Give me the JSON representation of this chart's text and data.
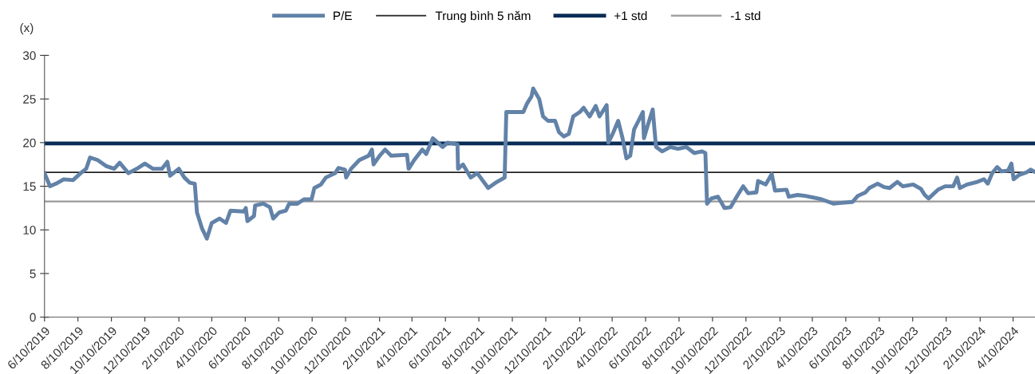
{
  "chart_data": {
    "type": "line",
    "ylabel": "(x)",
    "legend": "top",
    "grid": false,
    "marker": "none",
    "line_style": "solid",
    "xlim": [
      "2019-06-10",
      "2024-05-20"
    ],
    "ylim": [
      0,
      30
    ],
    "yticks": [
      0,
      5,
      10,
      15,
      20,
      25,
      30
    ],
    "xticks": [
      {
        "value": "2019-06-10",
        "label": "6/10/2019"
      },
      {
        "value": "2019-08-10",
        "label": "8/10/2019"
      },
      {
        "value": "2019-10-10",
        "label": "10/10/2019"
      },
      {
        "value": "2019-12-10",
        "label": "12/10/2019"
      },
      {
        "value": "2020-02-10",
        "label": "2/10/2020"
      },
      {
        "value": "2020-04-10",
        "label": "4/10/2020"
      },
      {
        "value": "2020-06-10",
        "label": "6/10/2020"
      },
      {
        "value": "2020-08-10",
        "label": "8/10/2020"
      },
      {
        "value": "2020-10-10",
        "label": "10/10/2020"
      },
      {
        "value": "2020-12-10",
        "label": "12/10/2020"
      },
      {
        "value": "2021-02-10",
        "label": "2/10/2021"
      },
      {
        "value": "2021-04-10",
        "label": "4/10/2021"
      },
      {
        "value": "2021-06-10",
        "label": "6/10/2021"
      },
      {
        "value": "2021-08-10",
        "label": "8/10/2021"
      },
      {
        "value": "2021-10-10",
        "label": "10/10/2021"
      },
      {
        "value": "2021-12-10",
        "label": "12/10/2021"
      },
      {
        "value": "2022-02-10",
        "label": "2/10/2022"
      },
      {
        "value": "2022-04-10",
        "label": "4/10/2022"
      },
      {
        "value": "2022-06-10",
        "label": "6/10/2022"
      },
      {
        "value": "2022-08-10",
        "label": "8/10/2022"
      },
      {
        "value": "2022-10-10",
        "label": "10/10/2022"
      },
      {
        "value": "2022-12-10",
        "label": "12/10/2022"
      },
      {
        "value": "2023-02-10",
        "label": "2/10/2023"
      },
      {
        "value": "2023-04-10",
        "label": "4/10/2023"
      },
      {
        "value": "2023-06-10",
        "label": "6/10/2023"
      },
      {
        "value": "2023-08-10",
        "label": "8/10/2023"
      },
      {
        "value": "2023-10-10",
        "label": "10/10/2023"
      },
      {
        "value": "2023-12-10",
        "label": "12/10/2023"
      },
      {
        "value": "2024-02-10",
        "label": "2/10/2024"
      },
      {
        "value": "2024-04-10",
        "label": "4/10/2024"
      }
    ],
    "series": [
      {
        "name": "P/E",
        "color": "#6282a8",
        "x": [
          "2019-06-10",
          "2019-06-20",
          "2019-07-01",
          "2019-07-15",
          "2019-08-01",
          "2019-08-15",
          "2019-08-25",
          "2019-09-01",
          "2019-09-15",
          "2019-10-01",
          "2019-10-15",
          "2019-10-25",
          "2019-11-10",
          "2019-11-25",
          "2019-12-10",
          "2019-12-25",
          "2020-01-10",
          "2020-01-20",
          "2020-01-25",
          "2020-02-10",
          "2020-02-20",
          "2020-03-01",
          "2020-03-10",
          "2020-03-14",
          "2020-03-23",
          "2020-04-01",
          "2020-04-10",
          "2020-04-24",
          "2020-05-06",
          "2020-05-14",
          "2020-06-07",
          "2020-06-11",
          "2020-06-14",
          "2020-06-26",
          "2020-06-28",
          "2020-07-13",
          "2020-07-25",
          "2020-07-31",
          "2020-08-11",
          "2020-08-23",
          "2020-08-29",
          "2020-09-13",
          "2020-09-25",
          "2020-10-09",
          "2020-10-14",
          "2020-10-26",
          "2020-11-04",
          "2020-11-21",
          "2020-11-27",
          "2020-12-09",
          "2020-12-11",
          "2020-12-20",
          "2021-01-04",
          "2021-01-21",
          "2021-01-27",
          "2021-01-30",
          "2021-02-10",
          "2021-02-20",
          "2021-03-03",
          "2021-04-01",
          "2021-04-04",
          "2021-04-14",
          "2021-04-29",
          "2021-05-06",
          "2021-05-18",
          "2021-06-05",
          "2021-06-14",
          "2021-07-02",
          "2021-07-03",
          "2021-07-12",
          "2021-07-26",
          "2021-08-07",
          "2021-08-27",
          "2021-09-12",
          "2021-09-26",
          "2021-09-29",
          "2021-10-16",
          "2021-10-30",
          "2021-11-06",
          "2021-11-14",
          "2021-11-17",
          "2021-11-28",
          "2021-12-05",
          "2021-12-14",
          "2021-12-27",
          "2022-01-03",
          "2022-01-12",
          "2022-01-21",
          "2022-01-29",
          "2022-02-10",
          "2022-02-17",
          "2022-02-28",
          "2022-03-11",
          "2022-03-18",
          "2022-03-31",
          "2022-04-03",
          "2022-04-11",
          "2022-04-21",
          "2022-04-29",
          "2022-05-06",
          "2022-05-13",
          "2022-05-20",
          "2022-05-28",
          "2022-06-05",
          "2022-06-07",
          "2022-06-14",
          "2022-06-23",
          "2022-06-29",
          "2022-07-10",
          "2022-07-25",
          "2022-08-08",
          "2022-08-23",
          "2022-09-07",
          "2022-09-21",
          "2022-09-27",
          "2022-09-30",
          "2022-10-08",
          "2022-10-20",
          "2022-11-01",
          "2022-11-12",
          "2022-11-25",
          "2022-12-05",
          "2022-12-14",
          "2022-12-29",
          "2023-01-01",
          "2023-01-15",
          "2023-01-26",
          "2023-02-01",
          "2023-02-22",
          "2023-02-26",
          "2023-03-14",
          "2023-03-28",
          "2023-04-27",
          "2023-05-19",
          "2023-06-02",
          "2023-06-22",
          "2023-07-02",
          "2023-07-16",
          "2023-07-23",
          "2023-08-07",
          "2023-08-19",
          "2023-08-29",
          "2023-09-12",
          "2023-09-22",
          "2023-10-11",
          "2023-10-25",
          "2023-11-01",
          "2023-11-08",
          "2023-11-25",
          "2023-12-08",
          "2023-12-23",
          "2023-12-30",
          "2024-01-04",
          "2024-01-17",
          "2024-02-05",
          "2024-02-17",
          "2024-02-24",
          "2024-03-03",
          "2024-03-12",
          "2024-03-20",
          "2024-04-01",
          "2024-04-07",
          "2024-04-11",
          "2024-04-21",
          "2024-05-05",
          "2024-05-12",
          "2024-05-18"
        ],
        "values": [
          16.5,
          15.0,
          15.3,
          15.8,
          15.7,
          16.5,
          17.0,
          18.3,
          18.0,
          17.3,
          17.0,
          17.7,
          16.5,
          17.0,
          17.6,
          17.0,
          17.0,
          17.8,
          16.2,
          17.0,
          16.0,
          15.4,
          15.3,
          12.0,
          10.2,
          9.0,
          10.8,
          11.3,
          10.8,
          12.2,
          12.1,
          12.5,
          11.0,
          11.6,
          12.8,
          13.0,
          12.6,
          11.3,
          12.0,
          12.2,
          13.0,
          13.0,
          13.5,
          13.5,
          14.8,
          15.2,
          16.0,
          16.5,
          17.1,
          16.9,
          16.0,
          17.0,
          18.0,
          18.5,
          19.2,
          17.5,
          18.5,
          19.2,
          18.5,
          18.6,
          17.0,
          18.0,
          19.2,
          18.7,
          20.5,
          19.5,
          20.0,
          19.8,
          17.0,
          17.5,
          16.0,
          16.5,
          14.8,
          15.5,
          16.0,
          23.5,
          23.5,
          23.5,
          24.5,
          25.3,
          26.2,
          25.0,
          23.0,
          22.5,
          22.5,
          21.2,
          20.7,
          21.0,
          23.0,
          23.5,
          24.0,
          23.0,
          24.2,
          23.0,
          24.3,
          20.0,
          21.0,
          22.5,
          20.5,
          18.2,
          18.5,
          21.5,
          22.5,
          23.5,
          20.5,
          22.0,
          23.8,
          19.5,
          19.0,
          19.5,
          19.3,
          19.5,
          18.8,
          19.0,
          18.8,
          13.0,
          13.6,
          13.8,
          12.5,
          12.6,
          14.0,
          15.0,
          14.2,
          14.3,
          15.6,
          15.2,
          16.4,
          14.5,
          14.6,
          13.8,
          14.0,
          13.9,
          13.5,
          13.0,
          13.1,
          13.2,
          13.9,
          14.3,
          14.8,
          15.3,
          14.9,
          14.8,
          15.5,
          15.0,
          15.2,
          14.7,
          14.0,
          13.6,
          14.6,
          15.0,
          15.0,
          16.0,
          14.8,
          15.2,
          15.5,
          15.8,
          15.3,
          16.5,
          17.2,
          16.7,
          16.8,
          17.6,
          15.8,
          16.3,
          16.6,
          16.9,
          16.7
        ]
      },
      {
        "name": "Trung bình 5 năm",
        "color": "#222222",
        "x": [
          "2019-06-10",
          "2024-05-20"
        ],
        "values": [
          16.6,
          16.6
        ]
      },
      {
        "name": "+1 std",
        "color": "#0a2d57",
        "x": [
          "2019-06-10",
          "2024-05-20"
        ],
        "values": [
          19.9,
          19.9
        ]
      },
      {
        "name": "-1 std",
        "color": "#999999",
        "x": [
          "2019-06-10",
          "2024-05-20"
        ],
        "values": [
          13.25,
          13.25
        ]
      }
    ]
  }
}
